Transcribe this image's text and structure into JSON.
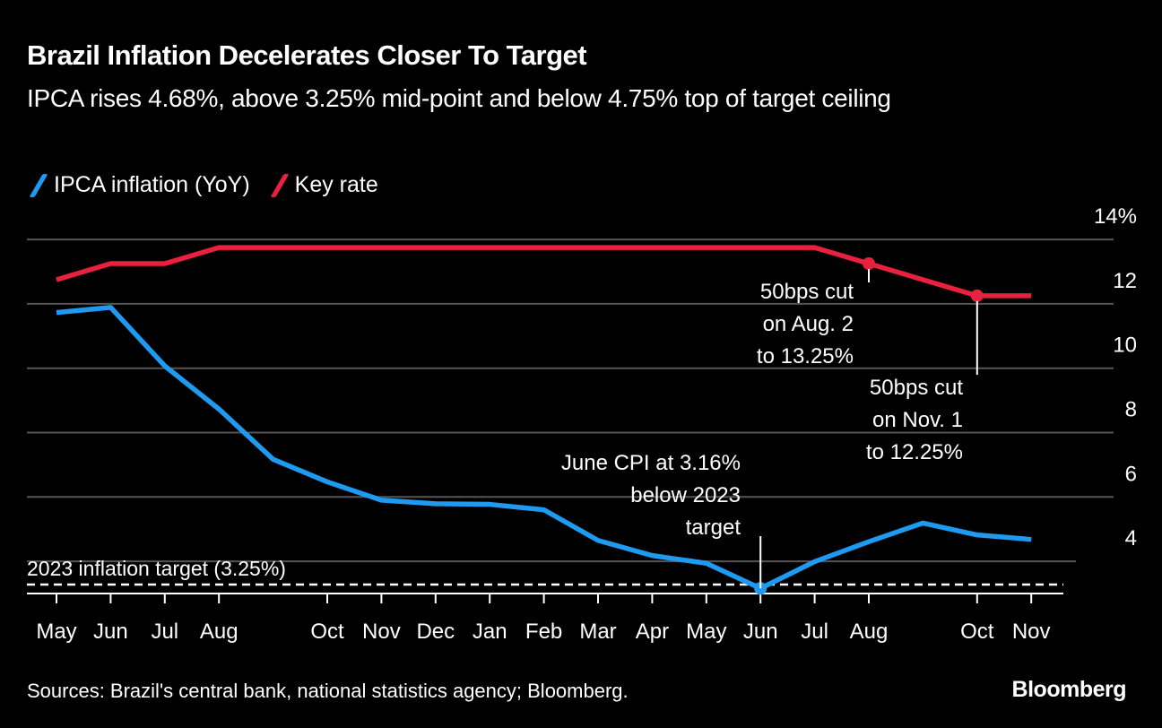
{
  "header": {
    "title": "Brazil Inflation Decelerates Closer To Target",
    "subtitle": "IPCA rises 4.68%, above 3.25% mid-point and below 4.75% top of target ceiling"
  },
  "footer": {
    "source": "Sources: Brazil's central bank, national statistics agency; Bloomberg.",
    "brand": "Bloomberg"
  },
  "colors": {
    "ipca": "#1E9BF0",
    "key_rate": "#E8213F",
    "grid": "#555555",
    "text": "#FFFFFF",
    "background": "#000000"
  },
  "chart_data": {
    "type": "line",
    "title": "Brazil Inflation Decelerates Closer To Target",
    "subtitle": "IPCA rises 4.68%, above 3.25% mid-point and below 4.75% top of target ceiling",
    "xlabel": "",
    "ylabel": "",
    "x": [
      "2022-05",
      "2022-06",
      "2022-07",
      "2022-08",
      "2022-09",
      "2022-10",
      "2022-11",
      "2022-12",
      "2023-01",
      "2023-02",
      "2023-03",
      "2023-04",
      "2023-05",
      "2023-06",
      "2023-07",
      "2023-08",
      "2023-09",
      "2023-10",
      "2023-11"
    ],
    "tick_labels": [
      "May",
      "Jun",
      "Jul",
      "Aug",
      "",
      "Oct",
      "Nov",
      "Dec",
      "Jan",
      "Feb",
      "Mar",
      "Apr",
      "May",
      "Jun",
      "Jul",
      "Aug",
      "",
      "Oct",
      "Nov"
    ],
    "ylim": [
      3.0,
      14.0
    ],
    "yticks": [
      4,
      6,
      8,
      10,
      12,
      14
    ],
    "ytick_labels": [
      "4",
      "6",
      "8",
      "10",
      "12",
      "14%"
    ],
    "y_axis_position": "right",
    "grid": true,
    "legend_position": "top-left",
    "series": [
      {
        "name": "IPCA inflation (YoY)",
        "color": "#1E9BF0",
        "values": [
          11.73,
          11.89,
          10.07,
          8.73,
          7.17,
          6.47,
          5.9,
          5.79,
          5.77,
          5.6,
          4.65,
          4.18,
          3.94,
          3.16,
          3.99,
          4.61,
          5.19,
          4.82,
          4.68
        ],
        "markers": [
          {
            "index": 13,
            "value": 3.16
          }
        ]
      },
      {
        "name": "Key rate",
        "color": "#E8213F",
        "values": [
          12.75,
          13.25,
          13.25,
          13.75,
          13.75,
          13.75,
          13.75,
          13.75,
          13.75,
          13.75,
          13.75,
          13.75,
          13.75,
          13.75,
          13.75,
          13.25,
          12.75,
          12.25,
          12.25
        ],
        "markers": [
          {
            "index": 15,
            "value": 13.25
          },
          {
            "index": 17,
            "value": 12.25
          }
        ]
      }
    ],
    "reference_lines": [
      {
        "label": "2023 inflation target (3.25%)",
        "value": 3.25,
        "style": "dashed"
      }
    ],
    "annotations": [
      {
        "series": "IPCA inflation (YoY)",
        "index": 13,
        "lines": [
          "June CPI at 3.16%",
          "below 2023",
          "target"
        ]
      },
      {
        "series": "Key rate",
        "index": 15,
        "lines": [
          "50bps cut",
          "on Aug. 2",
          "to 13.25%"
        ]
      },
      {
        "series": "Key rate",
        "index": 17,
        "lines": [
          "50bps cut",
          "on Nov. 1",
          "to 12.25%"
        ]
      }
    ]
  }
}
